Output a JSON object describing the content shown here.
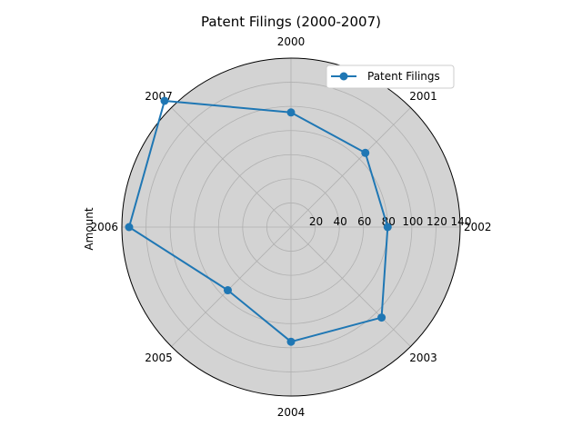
{
  "chart_data": {
    "type": "radar",
    "title": "Patent Filings (2000-2007)",
    "ylabel": "Amount",
    "categories": [
      "2000",
      "2001",
      "2002",
      "2003",
      "2004",
      "2005",
      "2006",
      "2007"
    ],
    "series": [
      {
        "name": "Patent Filings",
        "values": [
          95,
          87,
          80,
          106,
          95,
          74,
          134,
          148
        ],
        "color": "#1f77b4"
      }
    ],
    "r_ticks": [
      20,
      40,
      60,
      80,
      100,
      120,
      140
    ],
    "rlim": [
      0,
      140
    ],
    "grid": true,
    "legend": "top-right",
    "background_color": "#d3d3d3"
  }
}
